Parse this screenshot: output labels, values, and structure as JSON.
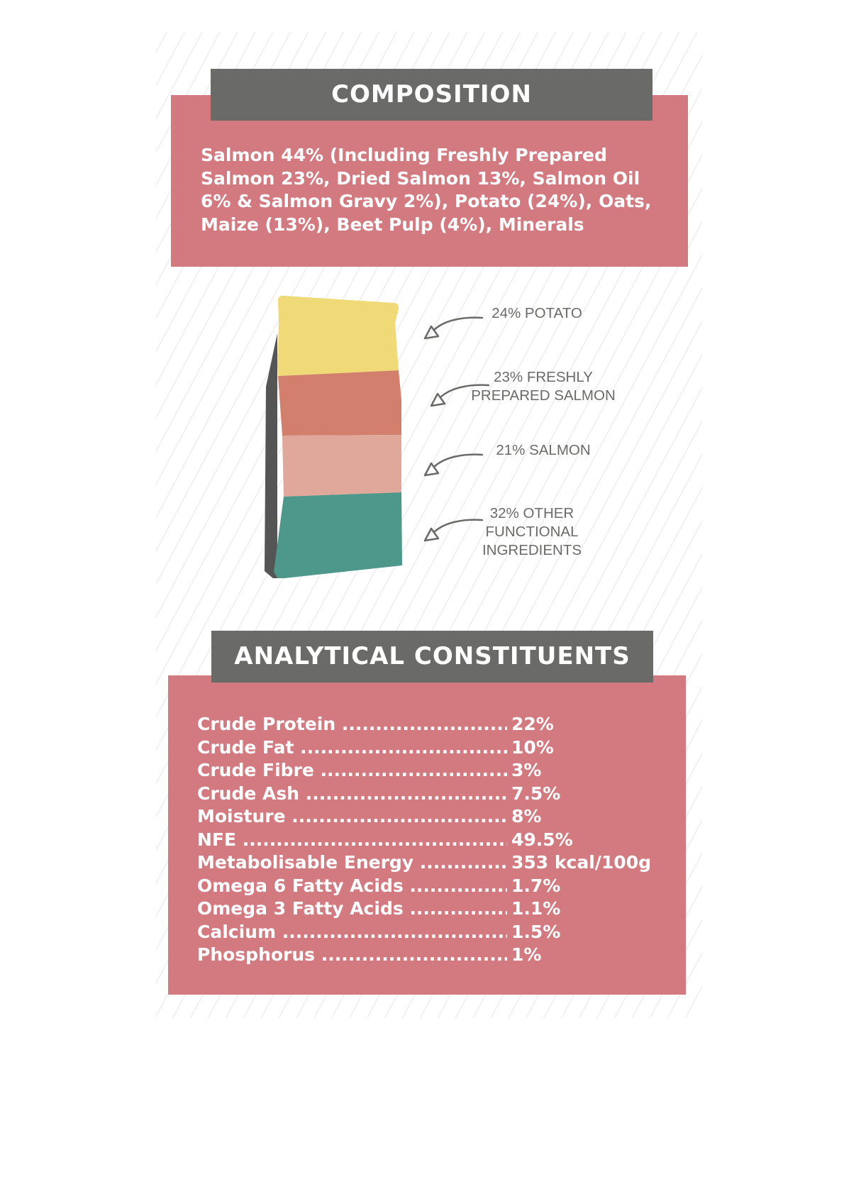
{
  "composition": {
    "title": "COMPOSITION",
    "text": "Salmon 44% (Including Freshly Prepared Salmon 23%, Dried Salmon 13%, Salmon Oil 6% & Salmon Gravy 2%), Potato (24%), Oats, Maize (13%), Beet Pulp (4%), Minerals"
  },
  "bag": {
    "layers": [
      {
        "label_lines": [
          "24% POTATO"
        ],
        "color": "#f0d977"
      },
      {
        "label_lines": [
          "23% FRESHLY",
          "PREPARED SALMON"
        ],
        "color": "#d2806d"
      },
      {
        "label_lines": [
          "21% SALMON"
        ],
        "color": "#e0a89a"
      },
      {
        "label_lines": [
          "32% OTHER",
          "FUNCTIONAL",
          "INGREDIENTS"
        ],
        "color": "#4e978b"
      }
    ],
    "side_color": "#555555",
    "arrow_color": "#6a6a68",
    "arrow_icon": "hand-drawn-arrow-icon"
  },
  "analytical": {
    "title": "ANALYTICAL CONSTITUENTS",
    "rows": [
      {
        "name": "Crude Protein",
        "value": "22%"
      },
      {
        "name": "Crude Fat",
        "value": "10%"
      },
      {
        "name": "Crude Fibre",
        "value": "3%"
      },
      {
        "name": "Crude Ash",
        "value": "7.5%"
      },
      {
        "name": "Moisture",
        "value": "8%"
      },
      {
        "name": "NFE",
        "value": "49.5%"
      },
      {
        "name": "Metabolisable Energy",
        "value": "353 kcal/100g"
      },
      {
        "name": "Omega 6 Fatty Acids",
        "value": "1.7%"
      },
      {
        "name": "Omega 3 Fatty Acids",
        "value": "1.1%"
      },
      {
        "name": "Calcium",
        "value": "1.5%"
      },
      {
        "name": "Phosphorus",
        "value": "1%"
      }
    ]
  },
  "colors": {
    "pink": "#d37a80",
    "header_gray": "#6a6a68"
  }
}
